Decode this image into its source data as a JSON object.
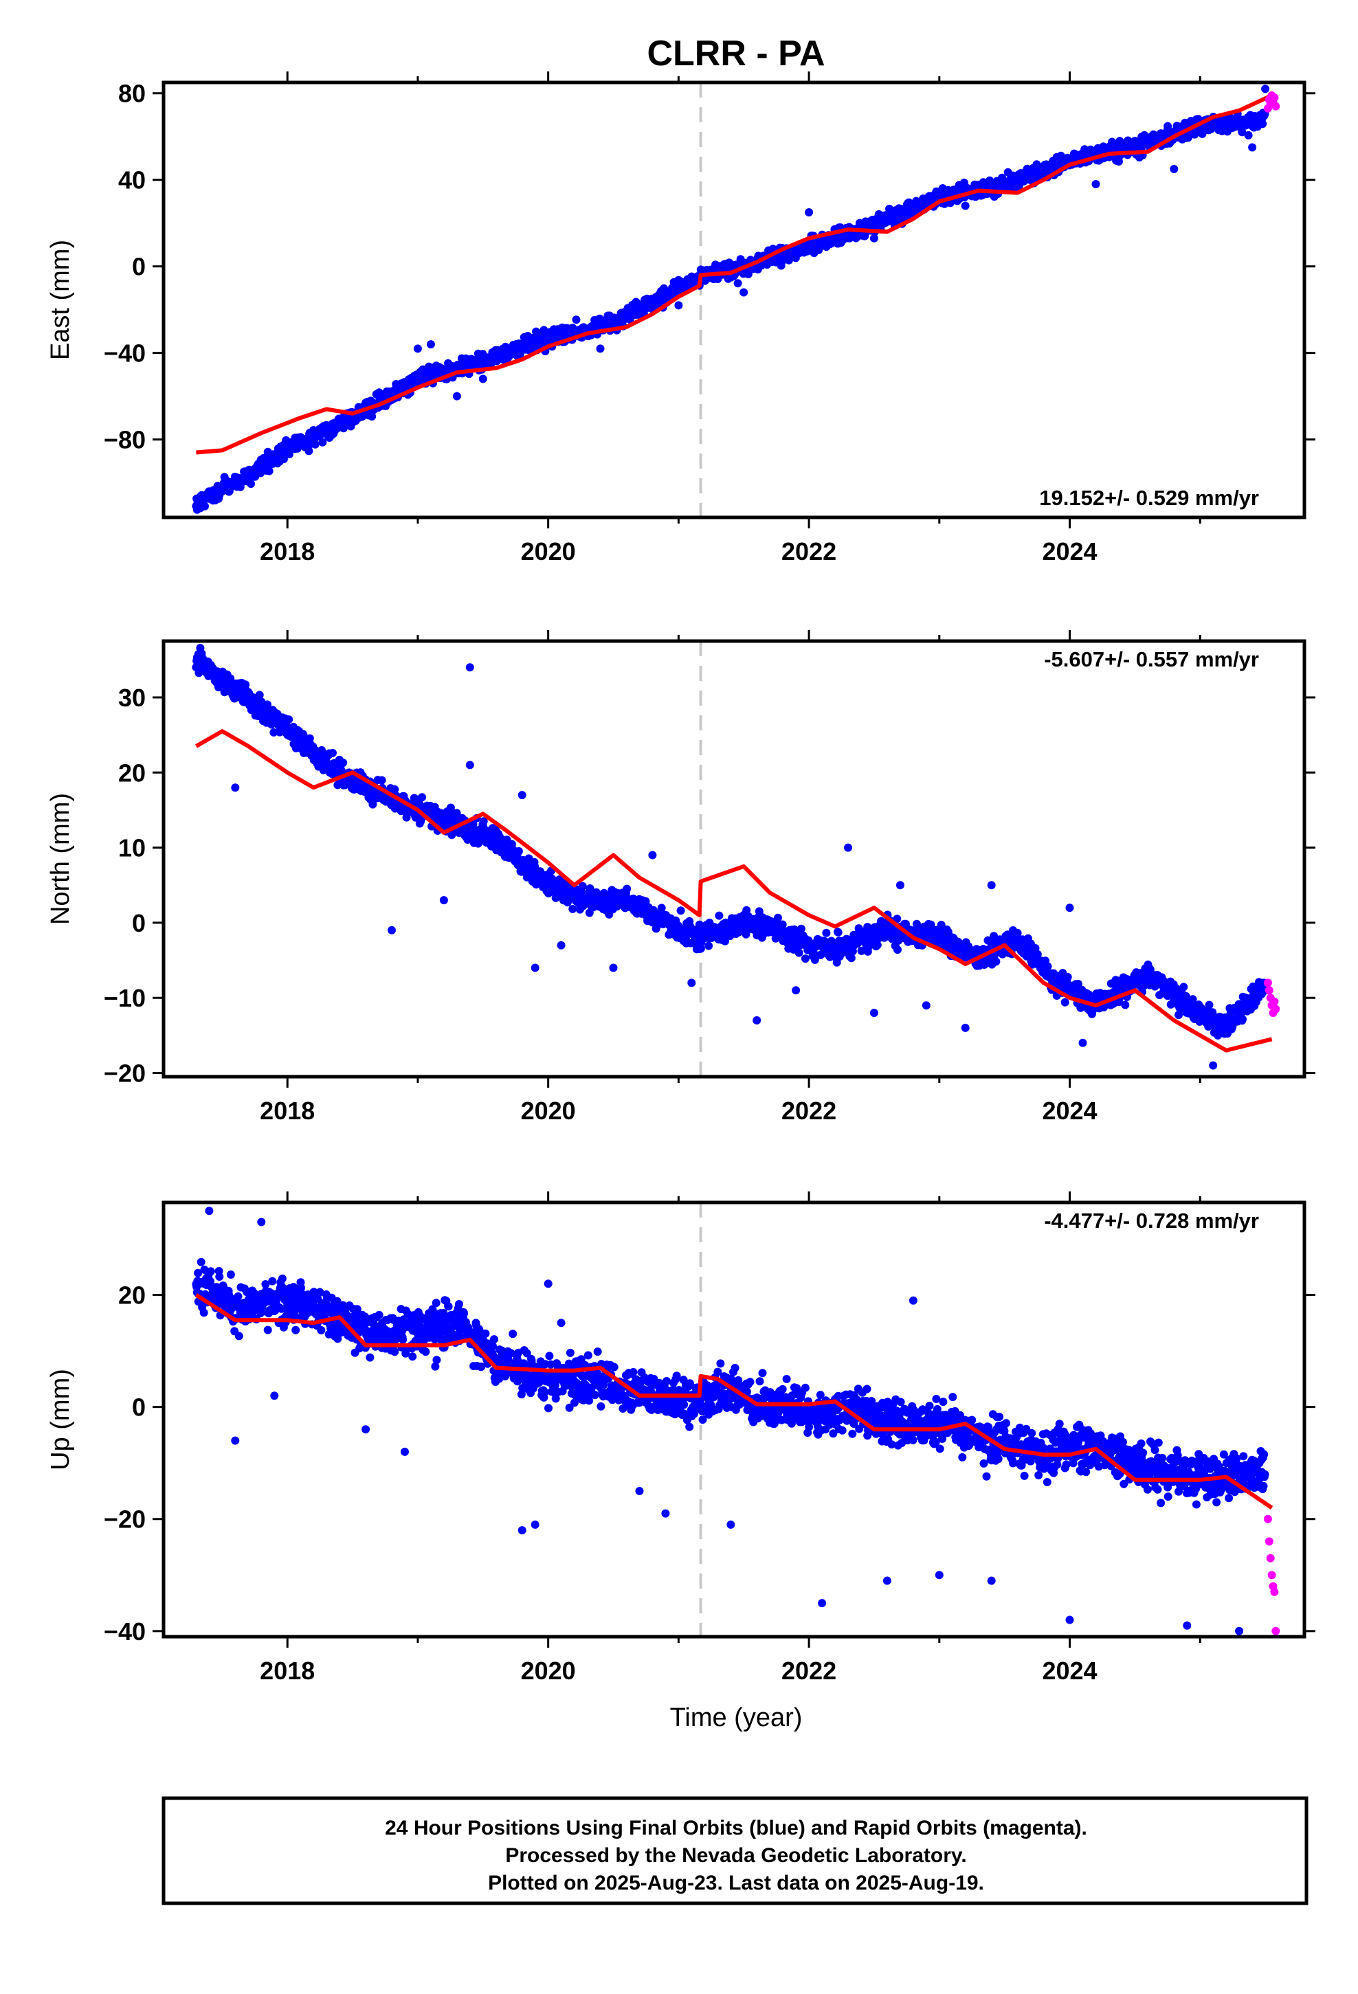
{
  "figure": {
    "title": "CLRR - PA",
    "xlabel": "Time (year)",
    "footer_lines": [
      "24 Hour Positions Using Final Orbits (blue) and Rapid Orbits (magenta).",
      "Processed by the Nevada Geodetic Laboratory.",
      "Plotted on 2025-Aug-23. Last data on 2025-Aug-19."
    ]
  },
  "colors": {
    "final_orbits": "#0000ff",
    "rapid_orbits": "#ff00ff",
    "model_fit": "#ff0000",
    "antenna_change": "#c8c8c8",
    "frame": "#000000"
  },
  "chart_data": [
    {
      "type": "scatter",
      "ylabel": "East (mm)",
      "rate_label": "19.152+/- 0.529 mm/yr",
      "rate_position": "bottom-right",
      "xlim": [
        2017.05,
        2025.8
      ],
      "ylim": [
        -116,
        85
      ],
      "x_ticks": [
        2018,
        2020,
        2022,
        2024
      ],
      "y_ticks": [
        -80,
        -40,
        0,
        40,
        80
      ],
      "step_at": 2021.17,
      "series": [
        {
          "role": "final",
          "trend": [
            [
              2017.3,
              -110
            ],
            [
              2017.7,
              -97
            ],
            [
              2018.0,
              -84
            ],
            [
              2018.5,
              -70
            ],
            [
              2019.0,
              -52
            ],
            [
              2019.5,
              -44
            ],
            [
              2020.0,
              -33
            ],
            [
              2020.5,
              -26
            ],
            [
              2021.15,
              -6
            ],
            [
              2021.2,
              -3
            ],
            [
              2021.5,
              -1
            ],
            [
              2022.0,
              10
            ],
            [
              2022.5,
              19
            ],
            [
              2023.0,
              32
            ],
            [
              2023.5,
              38
            ],
            [
              2024.0,
              49
            ],
            [
              2024.5,
              55
            ],
            [
              2025.0,
              65
            ],
            [
              2025.3,
              66
            ],
            [
              2025.5,
              68
            ]
          ],
          "scatter": 3.5
        },
        {
          "role": "rapid",
          "points": [
            [
              2025.52,
              73
            ],
            [
              2025.53,
              77
            ],
            [
              2025.54,
              75
            ],
            [
              2025.55,
              79
            ],
            [
              2025.56,
              76
            ],
            [
              2025.57,
              78
            ],
            [
              2025.58,
              74
            ]
          ]
        },
        {
          "role": "model",
          "points": [
            [
              2017.3,
              -86
            ],
            [
              2017.5,
              -85
            ],
            [
              2017.8,
              -77
            ],
            [
              2018.1,
              -70
            ],
            [
              2018.3,
              -66
            ],
            [
              2018.5,
              -68
            ],
            [
              2018.7,
              -64
            ],
            [
              2019.0,
              -56
            ],
            [
              2019.3,
              -49
            ],
            [
              2019.6,
              -47
            ],
            [
              2019.8,
              -43
            ],
            [
              2020.0,
              -37
            ],
            [
              2020.3,
              -31
            ],
            [
              2020.6,
              -28
            ],
            [
              2020.8,
              -22
            ],
            [
              2021.0,
              -14
            ],
            [
              2021.16,
              -9
            ],
            [
              2021.17,
              -4
            ],
            [
              2021.4,
              -3
            ],
            [
              2021.6,
              2
            ],
            [
              2021.8,
              8
            ],
            [
              2022.0,
              13
            ],
            [
              2022.3,
              17
            ],
            [
              2022.6,
              16
            ],
            [
              2022.8,
              22
            ],
            [
              2023.0,
              30
            ],
            [
              2023.3,
              35
            ],
            [
              2023.6,
              34
            ],
            [
              2023.8,
              40
            ],
            [
              2024.0,
              47
            ],
            [
              2024.3,
              52
            ],
            [
              2024.6,
              53
            ],
            [
              2024.8,
              60
            ],
            [
              2025.1,
              69
            ],
            [
              2025.3,
              72
            ],
            [
              2025.55,
              79
            ]
          ]
        }
      ],
      "outliers": [
        [
          2019.0,
          -38
        ],
        [
          2019.1,
          -36
        ],
        [
          2019.3,
          -60
        ],
        [
          2019.5,
          -52
        ],
        [
          2020.4,
          -38
        ],
        [
          2021.0,
          -18
        ],
        [
          2021.5,
          -12
        ],
        [
          2022.0,
          25
        ],
        [
          2022.5,
          13
        ],
        [
          2023.2,
          28
        ],
        [
          2023.8,
          42
        ],
        [
          2024.2,
          38
        ],
        [
          2024.5,
          58
        ],
        [
          2024.8,
          45
        ],
        [
          2025.4,
          55
        ],
        [
          2025.5,
          82
        ]
      ]
    },
    {
      "type": "scatter",
      "ylabel": "North (mm)",
      "rate_label": "-5.607+/- 0.557 mm/yr",
      "rate_position": "top-right",
      "xlim": [
        2017.05,
        2025.8
      ],
      "ylim": [
        -20.5,
        37.5
      ],
      "x_ticks": [
        2018,
        2020,
        2022,
        2024
      ],
      "y_ticks": [
        -20,
        -10,
        0,
        10,
        20,
        30
      ],
      "step_at": 2021.17,
      "series": [
        {
          "role": "final",
          "trend": [
            [
              2017.3,
              35
            ],
            [
              2017.6,
              31
            ],
            [
              2018.0,
              26
            ],
            [
              2018.3,
              21
            ],
            [
              2018.6,
              18
            ],
            [
              2019.0,
              15
            ],
            [
              2019.3,
              13
            ],
            [
              2019.6,
              11
            ],
            [
              2019.8,
              8
            ],
            [
              2020.0,
              5
            ],
            [
              2020.3,
              3
            ],
            [
              2020.6,
              3
            ],
            [
              2020.9,
              0
            ],
            [
              2021.15,
              -2
            ],
            [
              2021.3,
              -1
            ],
            [
              2021.6,
              0
            ],
            [
              2022.0,
              -3
            ],
            [
              2022.3,
              -3
            ],
            [
              2022.6,
              -1
            ],
            [
              2023.0,
              -2
            ],
            [
              2023.3,
              -5
            ],
            [
              2023.6,
              -2
            ],
            [
              2023.9,
              -8
            ],
            [
              2024.2,
              -11
            ],
            [
              2024.6,
              -7
            ],
            [
              2024.9,
              -11
            ],
            [
              2025.2,
              -14
            ],
            [
              2025.5,
              -8
            ]
          ],
          "scatter": 1.4
        },
        {
          "role": "rapid",
          "points": [
            [
              2025.52,
              -8
            ],
            [
              2025.53,
              -9
            ],
            [
              2025.54,
              -10
            ],
            [
              2025.55,
              -11
            ],
            [
              2025.56,
              -12
            ],
            [
              2025.57,
              -10.5
            ],
            [
              2025.58,
              -11.5
            ]
          ]
        },
        {
          "role": "model",
          "points": [
            [
              2017.3,
              23.5
            ],
            [
              2017.5,
              25.5
            ],
            [
              2017.7,
              23.5
            ],
            [
              2018.0,
              20
            ],
            [
              2018.2,
              18
            ],
            [
              2018.5,
              20
            ],
            [
              2018.8,
              17
            ],
            [
              2019.0,
              15
            ],
            [
              2019.2,
              12
            ],
            [
              2019.5,
              14.5
            ],
            [
              2019.7,
              12
            ],
            [
              2020.0,
              8
            ],
            [
              2020.2,
              5
            ],
            [
              2020.5,
              9
            ],
            [
              2020.7,
              6
            ],
            [
              2021.0,
              3
            ],
            [
              2021.16,
              1
            ],
            [
              2021.17,
              5.5
            ],
            [
              2021.5,
              7.5
            ],
            [
              2021.7,
              4
            ],
            [
              2022.0,
              1
            ],
            [
              2022.2,
              -0.5
            ],
            [
              2022.5,
              2
            ],
            [
              2022.8,
              -2
            ],
            [
              2023.0,
              -3.5
            ],
            [
              2023.2,
              -5.5
            ],
            [
              2023.5,
              -3
            ],
            [
              2023.8,
              -8
            ],
            [
              2024.0,
              -10
            ],
            [
              2024.2,
              -11
            ],
            [
              2024.5,
              -9
            ],
            [
              2024.8,
              -13
            ],
            [
              2025.0,
              -15
            ],
            [
              2025.2,
              -17
            ],
            [
              2025.55,
              -15.5
            ]
          ]
        }
      ],
      "outliers": [
        [
          2017.6,
          18
        ],
        [
          2018.8,
          -1
        ],
        [
          2019.2,
          3
        ],
        [
          2019.4,
          34
        ],
        [
          2019.4,
          21
        ],
        [
          2019.8,
          17
        ],
        [
          2019.9,
          -6
        ],
        [
          2020.1,
          -3
        ],
        [
          2020.5,
          -6
        ],
        [
          2020.8,
          9
        ],
        [
          2021.1,
          -8
        ],
        [
          2021.6,
          -13
        ],
        [
          2021.9,
          -9
        ],
        [
          2022.3,
          10
        ],
        [
          2022.5,
          -12
        ],
        [
          2022.7,
          5
        ],
        [
          2022.9,
          -11
        ],
        [
          2023.2,
          -14
        ],
        [
          2023.4,
          5
        ],
        [
          2024.0,
          2
        ],
        [
          2024.1,
          -16
        ],
        [
          2025.1,
          -19
        ]
      ]
    },
    {
      "type": "scatter",
      "ylabel": "Up (mm)",
      "rate_label": "-4.477+/- 0.728 mm/yr",
      "rate_position": "top-right",
      "xlim": [
        2017.05,
        2025.8
      ],
      "ylim": [
        -41,
        36.5
      ],
      "x_ticks": [
        2018,
        2020,
        2022,
        2024
      ],
      "y_ticks": [
        -40,
        -20,
        0,
        20
      ],
      "step_at": 2021.17,
      "series": [
        {
          "role": "final",
          "trend": [
            [
              2017.3,
              22
            ],
            [
              2017.6,
              18
            ],
            [
              2018.0,
              19
            ],
            [
              2018.3,
              17
            ],
            [
              2018.6,
              13
            ],
            [
              2019.0,
              13
            ],
            [
              2019.3,
              15
            ],
            [
              2019.6,
              8
            ],
            [
              2020.0,
              5
            ],
            [
              2020.4,
              5
            ],
            [
              2020.7,
              2
            ],
            [
              2021.15,
              1
            ],
            [
              2021.4,
              3
            ],
            [
              2021.7,
              0
            ],
            [
              2022.0,
              -1
            ],
            [
              2022.4,
              0
            ],
            [
              2022.7,
              -4
            ],
            [
              2023.0,
              -3
            ],
            [
              2023.4,
              -6
            ],
            [
              2023.8,
              -8
            ],
            [
              2024.2,
              -7
            ],
            [
              2024.6,
              -11
            ],
            [
              2025.0,
              -13
            ],
            [
              2025.5,
              -12
            ]
          ],
          "scatter": 3.6
        },
        {
          "role": "rapid",
          "points": [
            [
              2025.52,
              -20
            ],
            [
              2025.53,
              -24
            ],
            [
              2025.54,
              -27
            ],
            [
              2025.55,
              -30
            ],
            [
              2025.56,
              -32
            ],
            [
              2025.57,
              -33
            ],
            [
              2025.58,
              -40
            ]
          ]
        },
        {
          "role": "model",
          "points": [
            [
              2017.3,
              20
            ],
            [
              2017.6,
              15.5
            ],
            [
              2018.0,
              15.5
            ],
            [
              2018.2,
              15
            ],
            [
              2018.4,
              16
            ],
            [
              2018.6,
              11
            ],
            [
              2019.0,
              11
            ],
            [
              2019.2,
              11
            ],
            [
              2019.4,
              12
            ],
            [
              2019.6,
              7
            ],
            [
              2020.0,
              6.5
            ],
            [
              2020.2,
              6.5
            ],
            [
              2020.4,
              7
            ],
            [
              2020.7,
              2
            ],
            [
              2021.0,
              2
            ],
            [
              2021.16,
              2
            ],
            [
              2021.17,
              5.5
            ],
            [
              2021.3,
              5
            ],
            [
              2021.6,
              0.5
            ],
            [
              2022.0,
              0.5
            ],
            [
              2022.2,
              1
            ],
            [
              2022.5,
              -4
            ],
            [
              2022.8,
              -4
            ],
            [
              2023.0,
              -4
            ],
            [
              2023.2,
              -3
            ],
            [
              2023.5,
              -7.5
            ],
            [
              2023.8,
              -8.5
            ],
            [
              2024.0,
              -8.5
            ],
            [
              2024.2,
              -7.5
            ],
            [
              2024.5,
              -13
            ],
            [
              2024.8,
              -13
            ],
            [
              2025.0,
              -13
            ],
            [
              2025.2,
              -12.5
            ],
            [
              2025.55,
              -18
            ]
          ]
        }
      ],
      "outliers": [
        [
          2017.4,
          35
        ],
        [
          2017.6,
          -6
        ],
        [
          2017.8,
          33
        ],
        [
          2017.9,
          2
        ],
        [
          2018.6,
          -4
        ],
        [
          2018.9,
          -8
        ],
        [
          2019.8,
          -22
        ],
        [
          2019.9,
          -21
        ],
        [
          2020.0,
          22
        ],
        [
          2020.1,
          15
        ],
        [
          2020.7,
          -15
        ],
        [
          2020.9,
          -19
        ],
        [
          2021.4,
          -21
        ],
        [
          2022.1,
          -35
        ],
        [
          2022.6,
          -31
        ],
        [
          2022.8,
          19
        ],
        [
          2023.0,
          -30
        ],
        [
          2023.4,
          -31
        ],
        [
          2024.0,
          -38
        ],
        [
          2024.9,
          -39
        ],
        [
          2025.3,
          -40
        ]
      ]
    }
  ]
}
